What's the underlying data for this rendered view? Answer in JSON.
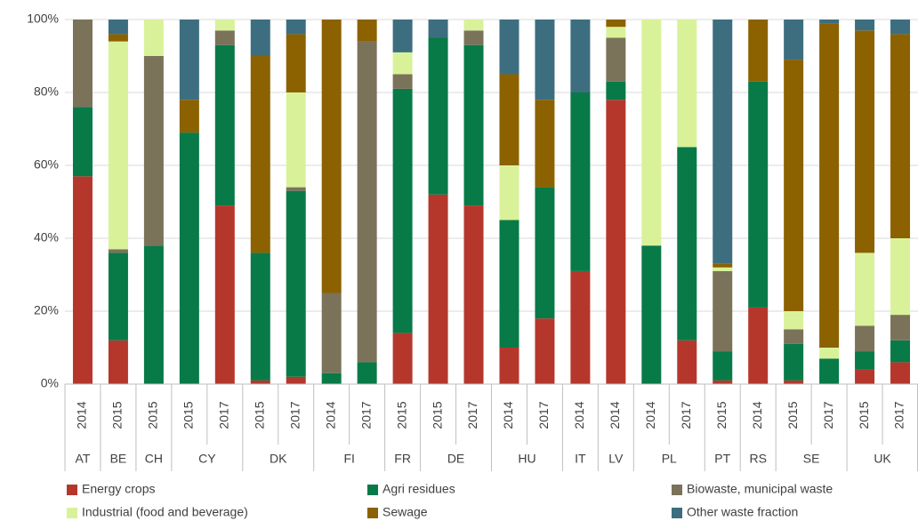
{
  "chart_data": {
    "type": "stacked_bar_100",
    "groups": [
      {
        "name": "AT",
        "categories": [
          "2014"
        ]
      },
      {
        "name": "BE",
        "categories": [
          "2015"
        ]
      },
      {
        "name": "CH",
        "categories": [
          "2015"
        ]
      },
      {
        "name": "CY",
        "categories": [
          "2015",
          "2017"
        ]
      },
      {
        "name": "DK",
        "categories": [
          "2015",
          "2017"
        ]
      },
      {
        "name": "FI",
        "categories": [
          "2014",
          "2017"
        ]
      },
      {
        "name": "FR",
        "categories": [
          "2015"
        ]
      },
      {
        "name": "DE",
        "categories": [
          "2015",
          "2017"
        ]
      },
      {
        "name": "HU",
        "categories": [
          "2014",
          "2017"
        ]
      },
      {
        "name": "IT",
        "categories": [
          "2014"
        ]
      },
      {
        "name": "LV",
        "categories": [
          "2014"
        ]
      },
      {
        "name": "PL",
        "categories": [
          "2014",
          "2017"
        ]
      },
      {
        "name": "PT",
        "categories": [
          "2015"
        ]
      },
      {
        "name": "RS",
        "categories": [
          "2014"
        ]
      },
      {
        "name": "SE",
        "categories": [
          "2015",
          "2017"
        ]
      },
      {
        "name": "UK",
        "categories": [
          "2015",
          "2017"
        ]
      }
    ],
    "series": [
      {
        "name": "Energy crops",
        "color": "#b5372c",
        "values": [
          57,
          12,
          0,
          0,
          49,
          1,
          2,
          0,
          0,
          14,
          52,
          49,
          10,
          18,
          31,
          78,
          0,
          12,
          1,
          21,
          1,
          0,
          4,
          6
        ]
      },
      {
        "name": "Agri residues",
        "color": "#077a47",
        "values": [
          19,
          24,
          38,
          69,
          44,
          35,
          51,
          3,
          6,
          67,
          43,
          44,
          35,
          36,
          49,
          5,
          38,
          53,
          8,
          62,
          10,
          7,
          5,
          6
        ]
      },
      {
        "name": "Biowaste, municipal waste",
        "color": "#7a735a",
        "values": [
          24,
          1,
          52,
          0,
          4,
          0,
          1,
          22,
          88,
          4,
          0,
          4,
          0,
          0,
          0,
          12,
          0,
          0,
          22,
          0,
          4,
          0,
          7,
          7
        ]
      },
      {
        "name": "Industrial (food and beverage)",
        "color": "#d9f29a",
        "values": [
          0,
          57,
          10,
          0,
          3,
          0,
          26,
          0,
          0,
          6,
          0,
          3,
          15,
          0,
          0,
          3,
          62,
          35,
          1,
          0,
          5,
          3,
          20,
          21
        ]
      },
      {
        "name": "Sewage",
        "color": "#8c6100",
        "values": [
          0,
          2,
          0,
          9,
          0,
          54,
          16,
          75,
          6,
          0,
          0,
          0,
          25,
          24,
          0,
          2,
          0,
          0,
          1,
          17,
          69,
          89,
          61,
          56
        ]
      },
      {
        "name": "Other waste fraction",
        "color": "#3c6e80",
        "values": [
          0,
          4,
          0,
          22,
          0,
          10,
          4,
          0,
          0,
          9,
          5,
          0,
          15,
          22,
          20,
          0,
          0,
          0,
          67,
          0,
          11,
          1,
          3,
          4
        ]
      }
    ],
    "ylim": [
      0,
      100
    ],
    "yticks": [
      {
        "value": 0,
        "label": "0%"
      },
      {
        "value": 20,
        "label": "20%"
      },
      {
        "value": 40,
        "label": "40%"
      },
      {
        "value": 60,
        "label": "60%"
      },
      {
        "value": 80,
        "label": "80%"
      },
      {
        "value": 100,
        "label": "100%"
      }
    ],
    "grid": true
  }
}
